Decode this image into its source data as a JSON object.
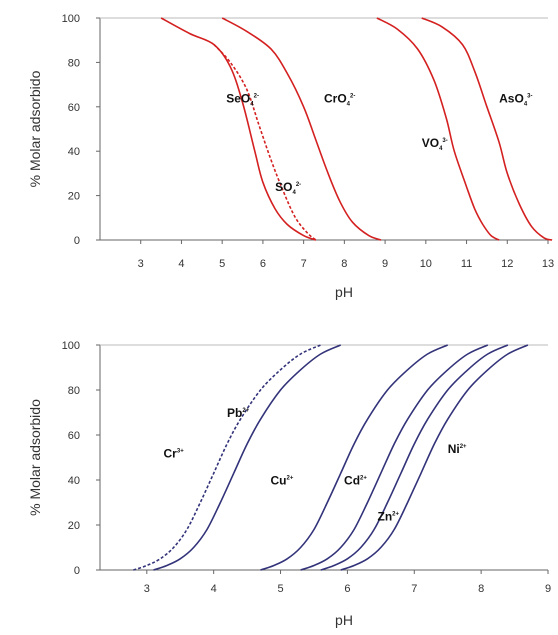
{
  "chart_data": [
    {
      "type": "line",
      "xlabel": "pH",
      "ylabel": "% Molar adsorbido",
      "xlim": [
        2,
        13
      ],
      "ylim": [
        0,
        100
      ],
      "xticks": [
        3,
        4,
        5,
        6,
        7,
        8,
        9,
        10,
        11,
        12,
        13
      ],
      "yticks": [
        0,
        20,
        40,
        60,
        80,
        100
      ],
      "color": "#d42020",
      "grid": false,
      "series": [
        {
          "name": "SeO4",
          "sup": "2-",
          "sub": "4",
          "dashed": false,
          "x": [
            3.5,
            4.2,
            4.8,
            5.2,
            5.5,
            5.8,
            6.0,
            6.3,
            6.6,
            7.0,
            7.3
          ],
          "y": [
            100,
            93,
            88,
            78,
            62,
            40,
            26,
            14,
            7,
            2,
            0
          ]
        },
        {
          "name": "SO4",
          "sup": "2-",
          "sub": "4",
          "dashed": true,
          "x": [
            4.8,
            5.2,
            5.6,
            5.9,
            6.2,
            6.5,
            6.8,
            7.1,
            7.3
          ],
          "y": [
            88,
            80,
            68,
            52,
            36,
            22,
            10,
            3,
            0
          ]
        },
        {
          "name": "CrO4",
          "sup": "2-",
          "sub": "4",
          "dashed": false,
          "x": [
            5.0,
            5.6,
            6.2,
            6.6,
            7.0,
            7.3,
            7.6,
            7.9,
            8.2,
            8.6,
            8.9
          ],
          "y": [
            100,
            94,
            86,
            75,
            60,
            45,
            30,
            17,
            8,
            2,
            0
          ]
        },
        {
          "name": "VO4",
          "sup": "3-",
          "sub": "4",
          "dashed": false,
          "x": [
            8.8,
            9.3,
            9.8,
            10.2,
            10.5,
            10.7,
            11.0,
            11.2,
            11.4,
            11.6,
            11.8
          ],
          "y": [
            100,
            95,
            86,
            72,
            55,
            40,
            24,
            14,
            7,
            2,
            0
          ]
        },
        {
          "name": "AsO4",
          "sup": "3-",
          "sub": "4",
          "dashed": false,
          "x": [
            9.9,
            10.4,
            10.9,
            11.2,
            11.5,
            11.8,
            12.0,
            12.3,
            12.6,
            12.9,
            13.1
          ],
          "y": [
            100,
            96,
            88,
            76,
            60,
            44,
            30,
            16,
            6,
            1,
            0
          ]
        }
      ],
      "labels": [
        {
          "series": "SeO4",
          "x": 5.1,
          "y": 62
        },
        {
          "series": "SO4",
          "x": 6.3,
          "y": 22
        },
        {
          "series": "CrO4",
          "x": 7.5,
          "y": 62
        },
        {
          "series": "VO4",
          "x": 9.9,
          "y": 42
        },
        {
          "series": "AsO4",
          "x": 11.8,
          "y": 62
        }
      ]
    },
    {
      "type": "line",
      "xlabel": "pH",
      "ylabel": "% Molar adsorbido",
      "xlim": [
        2.3,
        9
      ],
      "ylim": [
        0,
        100
      ],
      "xticks": [
        3,
        4,
        5,
        6,
        7,
        8,
        9
      ],
      "yticks": [
        0,
        20,
        40,
        60,
        80,
        100
      ],
      "color": "#33337a",
      "grid": false,
      "series": [
        {
          "name": "Cr",
          "sup": "3+",
          "dashed": true,
          "x": [
            2.8,
            3.0,
            3.2,
            3.4,
            3.6,
            3.8,
            4.0,
            4.2,
            4.4,
            4.7,
            5.0,
            5.3,
            5.6
          ],
          "y": [
            0,
            2,
            5,
            10,
            18,
            30,
            43,
            56,
            67,
            80,
            89,
            96,
            100
          ]
        },
        {
          "name": "Pb",
          "sup": "2+",
          "dashed": false,
          "x": [
            3.1,
            3.3,
            3.5,
            3.7,
            3.9,
            4.1,
            4.3,
            4.5,
            4.7,
            5.0,
            5.3,
            5.6,
            5.9
          ],
          "y": [
            0,
            2,
            5,
            10,
            18,
            30,
            43,
            56,
            67,
            80,
            89,
            96,
            100
          ]
        },
        {
          "name": "Cu",
          "sup": "2+",
          "dashed": false,
          "x": [
            4.7,
            4.9,
            5.1,
            5.3,
            5.5,
            5.7,
            5.9,
            6.1,
            6.3,
            6.6,
            6.9,
            7.2,
            7.5
          ],
          "y": [
            0,
            2,
            5,
            10,
            18,
            30,
            43,
            56,
            67,
            80,
            89,
            96,
            100
          ]
        },
        {
          "name": "Cd",
          "sup": "2+",
          "dashed": false,
          "x": [
            5.3,
            5.5,
            5.7,
            5.9,
            6.1,
            6.3,
            6.5,
            6.7,
            6.9,
            7.2,
            7.5,
            7.8,
            8.1
          ],
          "y": [
            0,
            2,
            5,
            10,
            18,
            30,
            43,
            56,
            67,
            80,
            89,
            96,
            100
          ]
        },
        {
          "name": "Zn",
          "sup": "2+",
          "dashed": false,
          "x": [
            5.6,
            5.8,
            6.0,
            6.2,
            6.4,
            6.6,
            6.8,
            7.0,
            7.2,
            7.5,
            7.8,
            8.1,
            8.4
          ],
          "y": [
            0,
            2,
            5,
            10,
            18,
            30,
            43,
            56,
            67,
            80,
            89,
            96,
            100
          ]
        },
        {
          "name": "Ni",
          "sup": "2+",
          "dashed": false,
          "x": [
            5.9,
            6.1,
            6.3,
            6.5,
            6.7,
            6.9,
            7.1,
            7.3,
            7.5,
            7.8,
            8.1,
            8.4,
            8.7
          ],
          "y": [
            0,
            2,
            5,
            10,
            18,
            30,
            43,
            56,
            67,
            80,
            89,
            96,
            100
          ]
        }
      ],
      "labels": [
        {
          "series": "Cr",
          "x": 3.25,
          "y": 50
        },
        {
          "series": "Pb",
          "x": 4.2,
          "y": 68
        },
        {
          "series": "Cu",
          "x": 4.85,
          "y": 38
        },
        {
          "series": "Cd",
          "x": 5.95,
          "y": 38
        },
        {
          "series": "Zn",
          "x": 6.45,
          "y": 22
        },
        {
          "series": "Ni",
          "x": 7.5,
          "y": 52
        }
      ]
    }
  ]
}
